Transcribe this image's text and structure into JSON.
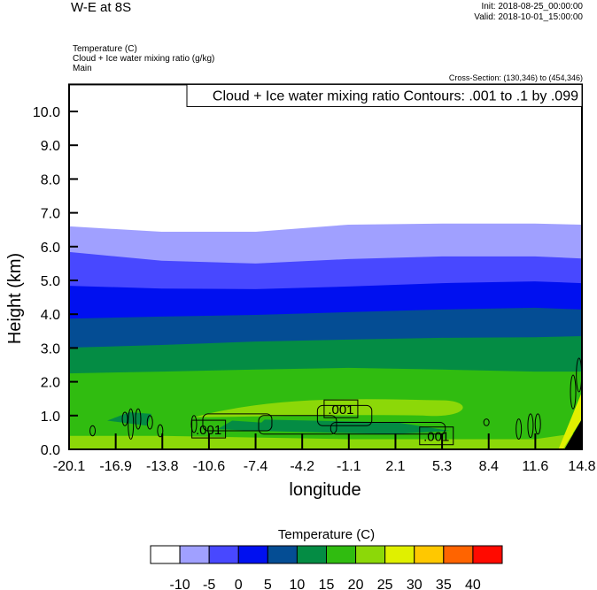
{
  "header": {
    "title": "W-E at 8S",
    "init": "Init: 2018-08-25_00:00:00",
    "valid": "Valid: 2018-10-01_15:00:00",
    "fields": [
      "Temperature   (C)",
      "Cloud + Ice water mixing ratio   (g/kg)",
      "Main"
    ],
    "cross_section": "Cross-Section: (130,346) to (454,346)"
  },
  "chart_data": {
    "type": "filled-contour",
    "xlabel": "longitude",
    "ylabel": "Height (km)",
    "xlim": [
      -20.1,
      14.8
    ],
    "ylim": [
      0,
      10.8
    ],
    "xticks": [
      "-20.1",
      "-16.9",
      "-13.8",
      "-10.6",
      "-7.4",
      "-4.2",
      "-1.1",
      "2.1",
      "5.3",
      "8.4",
      "11.6",
      "14.8"
    ],
    "yticks": [
      "0.0",
      "1.0",
      "2.0",
      "3.0",
      "4.0",
      "5.0",
      "6.0",
      "7.0",
      "8.0",
      "9.0",
      "10.0"
    ],
    "legend_title": "Temperature  (C)",
    "levels": [
      "-10",
      "-5",
      "0",
      "5",
      "10",
      "15",
      "20",
      "25",
      "30",
      "35",
      "40"
    ],
    "level_colors": [
      "#ffffff",
      "#a0a0ff",
      "#4848ff",
      "#0010f0",
      "#044d94",
      "#048c44",
      "#30bc10",
      "#8cd808",
      "#e0f000",
      "#ffc800",
      "#ff6400",
      "#ff0a00"
    ],
    "sample_lon": [
      -20.1,
      -13.8,
      -7.4,
      -1.1,
      5.3,
      11.6,
      14.8
    ],
    "isotherm_heights_km": {
      "-10": [
        6.6,
        6.44,
        6.44,
        6.65,
        6.68,
        6.68,
        6.65
      ],
      "-5": [
        5.84,
        5.58,
        5.5,
        5.63,
        5.71,
        5.71,
        5.65
      ],
      "0": [
        4.84,
        4.76,
        4.74,
        4.82,
        4.92,
        4.97,
        4.92
      ],
      "5": [
        3.87,
        3.93,
        3.98,
        4.06,
        4.14,
        4.19,
        4.14
      ],
      "10": [
        3.01,
        3.09,
        3.19,
        3.25,
        3.3,
        3.32,
        3.35
      ],
      "15": [
        2.25,
        2.3,
        2.36,
        2.41,
        2.36,
        2.3,
        2.3
      ],
      "20": [
        0.4,
        0.4,
        0.35,
        0.3,
        0.3,
        0.3,
        0.5
      ]
    },
    "overlay_title": "Cloud + Ice water mixing ratio Contours: .001 to .1 by .099",
    "contour_labels": [
      {
        "lon": -10.6,
        "h": 0.6,
        "text": ".001"
      },
      {
        "lon": -1.6,
        "h": 1.2,
        "text": ".001"
      },
      {
        "lon": 4.9,
        "h": 0.4,
        "text": ".001"
      }
    ]
  }
}
